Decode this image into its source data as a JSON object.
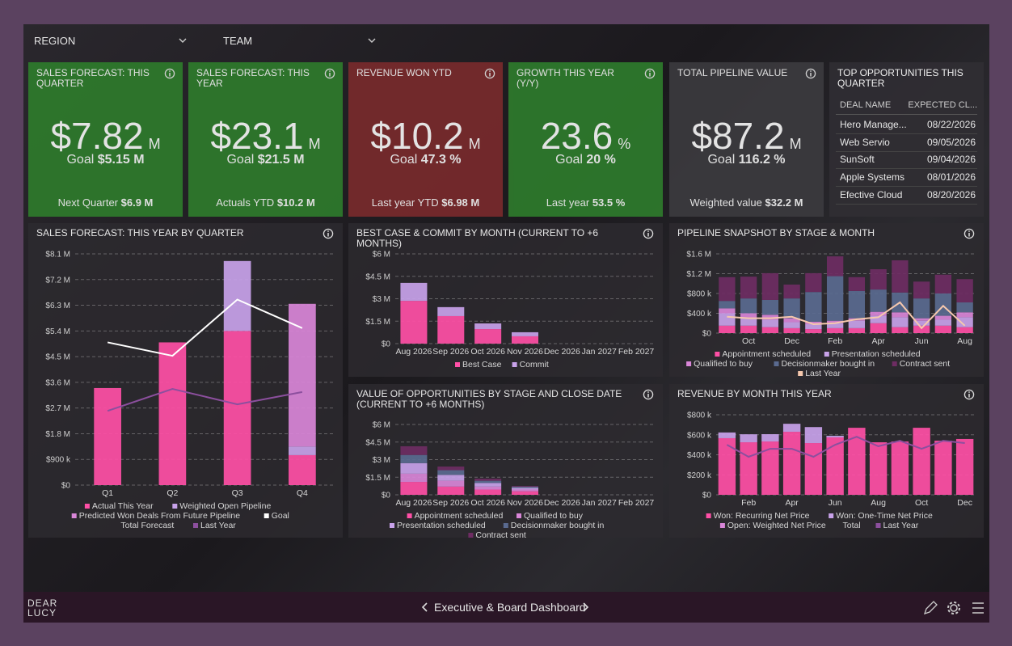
{
  "filters": [
    "REGION",
    "TEAM"
  ],
  "kpis": [
    {
      "title": "SALES FORECAST: THIS QUARTER",
      "value": "$7.82",
      "unit": "M",
      "goal_label": "Goal",
      "goal": "$5.15 M",
      "foot_label": "Next Quarter",
      "foot": "$6.9 M",
      "color": "#2e7a2c"
    },
    {
      "title": "SALES FORECAST: THIS YEAR",
      "value": "$23.1",
      "unit": "M",
      "goal_label": "Goal",
      "goal": "$21.5 M",
      "foot_label": "Actuals YTD",
      "foot": "$10.2 M",
      "color": "#2e7a2c"
    },
    {
      "title": "REVENUE WON YTD",
      "value": "$10.2",
      "unit": "M",
      "goal_label": "Goal",
      "goal": "47.3 %",
      "foot_label": "Last year YTD",
      "foot": "$6.98 M",
      "color": "#782a2c"
    },
    {
      "title": "GROWTH THIS YEAR (Y/Y)",
      "value": "23.6",
      "unit": "%",
      "goal_label": "Goal",
      "goal": "20 %",
      "foot_label": "Last year",
      "foot": "53.5 %",
      "color": "#2e7a2c"
    },
    {
      "title": "TOTAL PIPELINE VALUE",
      "value": "$87.2",
      "unit": "M",
      "goal_label": "Goal",
      "goal": "116.2 %",
      "foot_label": "Weighted value",
      "foot": "$32.2 M",
      "color": "#3b3a3e"
    }
  ],
  "table": {
    "title": "TOP OPPORTUNITIES THIS QUARTER",
    "columns": [
      "DEAL NAME",
      "EXPECTED CL..."
    ],
    "rows": [
      [
        "Hero Manage...",
        "08/22/2026"
      ],
      [
        "Web Servio",
        "09/05/2026"
      ],
      [
        "SunSoft",
        "09/04/2026"
      ],
      [
        "Apple Systems",
        "08/01/2026"
      ],
      [
        "Efective Cloud",
        "08/20/2026"
      ]
    ]
  },
  "chart_data": [
    {
      "type": "bar",
      "stacked": true,
      "title": "SALES FORECAST: THIS YEAR BY QUARTER",
      "categories": [
        "Q1",
        "Q2",
        "Q3",
        "Q4"
      ],
      "series": [
        {
          "name": "Actual This Year",
          "color": "#ff4fa6",
          "values": [
            3400000,
            5000000,
            5400000,
            1050000
          ]
        },
        {
          "name": "Weighted Open Pipeline",
          "color": "#c8a2ea",
          "values": [
            null,
            null,
            2450000,
            300000
          ]
        },
        {
          "name": "Predicted Won Deals From Future Pipeline",
          "color": "#d986d8",
          "values": [
            null,
            null,
            null,
            5000000
          ]
        },
        {
          "name": "Goal",
          "color": "#ffffff",
          "type": "line",
          "values": [
            5000000,
            4530000,
            6500000,
            5500000
          ]
        },
        {
          "name": "Total Forecast",
          "type": "line",
          "values": [
            null,
            null,
            null,
            null
          ]
        },
        {
          "name": "Last Year",
          "color": "#8c4f9e",
          "type": "line",
          "values": [
            2600000,
            3370000,
            2830000,
            3260000
          ]
        }
      ],
      "ylim": [
        0,
        8100000
      ],
      "yticks": [
        {
          "value": 0,
          "label": "$0"
        },
        {
          "value": 900000,
          "label": "$900 k"
        },
        {
          "value": 1800000,
          "label": "$1.8 M"
        },
        {
          "value": 2700000,
          "label": "$2.7 M"
        },
        {
          "value": 3600000,
          "label": "$3.6 M"
        },
        {
          "value": 4500000,
          "label": "$4.5 M"
        },
        {
          "value": 5400000,
          "label": "$5.4 M"
        },
        {
          "value": 6300000,
          "label": "$6.3 M"
        },
        {
          "value": 7200000,
          "label": "$7.2 M"
        },
        {
          "value": 8100000,
          "label": "$8.1 M"
        }
      ],
      "grid": true,
      "legend": "bottom"
    },
    {
      "type": "bar",
      "stacked": true,
      "title": "BEST CASE & COMMIT BY MONTH (CURRENT TO +6 MONTHS)",
      "categories": [
        "Aug 2026",
        "Sep 2026",
        "Oct 2026",
        "Nov 2026",
        "Dec 2026",
        "Jan 2027",
        "Feb 2027"
      ],
      "series": [
        {
          "name": "Best Case",
          "color": "#ff4fa6",
          "values": [
            2860000,
            1840000,
            970000,
            490000,
            0,
            0,
            0
          ]
        },
        {
          "name": "Commit",
          "color": "#c8a2ea",
          "values": [
            1200000,
            600000,
            380000,
            270000,
            0,
            0,
            0
          ]
        }
      ],
      "ylim": [
        0,
        6000000
      ],
      "yticks": [
        {
          "value": 0,
          "label": "$0"
        },
        {
          "value": 1500000,
          "label": "$1.5 M"
        },
        {
          "value": 3000000,
          "label": "$3 M"
        },
        {
          "value": 4500000,
          "label": "$4.5 M"
        },
        {
          "value": 6000000,
          "label": "$6 M"
        }
      ],
      "grid": true,
      "legend": "bottom"
    },
    {
      "type": "bar",
      "stacked": true,
      "title": "PIPELINE SNAPSHOT BY STAGE & MONTH",
      "categories": [
        null,
        "Oct",
        null,
        "Dec",
        null,
        "Feb",
        null,
        "Apr",
        null,
        "Jun",
        null,
        "Aug"
      ],
      "series": [
        {
          "name": "Appointment scheduled",
          "color": "#ff4fa6",
          "values": [
            150000,
            150000,
            120000,
            100000,
            80000,
            100000,
            100000,
            200000,
            120000,
            150000,
            150000,
            120000
          ]
        },
        {
          "name": "Presentation scheduled",
          "color": "#c8a2ea",
          "values": [
            250000,
            150000,
            150000,
            120000,
            100000,
            100000,
            150000,
            150000,
            200000,
            100000,
            120000,
            200000
          ]
        },
        {
          "name": "Qualified to buy",
          "color": "#d986d8",
          "values": [
            100000,
            100000,
            100000,
            80000,
            50000,
            50000,
            50000,
            80000,
            100000,
            50000,
            80000,
            100000
          ]
        },
        {
          "name": "Decisionmaker bought in",
          "color": "#5a6a90",
          "values": [
            150000,
            300000,
            300000,
            400000,
            600000,
            900000,
            550000,
            450000,
            400000,
            400000,
            450000,
            200000
          ]
        },
        {
          "name": "Contract sent",
          "color": "#6e2c63",
          "values": [
            480000,
            440000,
            540000,
            280000,
            380000,
            400000,
            280000,
            410000,
            650000,
            340000,
            380000,
            470000
          ]
        },
        {
          "name": "Last Year",
          "color": "#f6c8ad",
          "type": "line",
          "values": [
            330000,
            300000,
            300000,
            330000,
            180000,
            200000,
            280000,
            320000,
            620000,
            100000,
            550000,
            150000
          ]
        }
      ],
      "ylim": [
        0,
        1600000
      ],
      "yticks": [
        {
          "value": 0,
          "label": "$0"
        },
        {
          "value": 400000,
          "label": "$400 k"
        },
        {
          "value": 800000,
          "label": "$800 k"
        },
        {
          "value": 1200000,
          "label": "$1.2 M"
        },
        {
          "value": 1600000,
          "label": "$1.6 M"
        }
      ],
      "grid": true,
      "legend": "bottom"
    },
    {
      "type": "bar",
      "stacked": true,
      "title": "VALUE OF OPPORTUNITIES BY STAGE AND CLOSE DATE (CURRENT TO +6 MONTHS)",
      "categories": [
        "Aug 2026",
        "Sep 2026",
        "Oct 2026",
        "Nov 2026",
        "Dec 2026",
        "Jan 2027",
        "Feb 2027"
      ],
      "series": [
        {
          "name": "Appointment scheduled",
          "color": "#ff4fa6",
          "values": [
            1100000,
            700000,
            450000,
            300000,
            0,
            0,
            0
          ]
        },
        {
          "name": "Qualified to buy",
          "color": "#d986d8",
          "values": [
            700000,
            500000,
            250000,
            150000,
            0,
            0,
            0
          ]
        },
        {
          "name": "Presentation scheduled",
          "color": "#c8a2ea",
          "values": [
            900000,
            500000,
            300000,
            150000,
            0,
            0,
            0
          ]
        },
        {
          "name": "Decisionmaker bought in",
          "color": "#5a6a90",
          "values": [
            700000,
            400000,
            200000,
            100000,
            0,
            0,
            0
          ]
        },
        {
          "name": "Contract sent",
          "color": "#6e2c63",
          "values": [
            740000,
            310000,
            180000,
            60000,
            0,
            0,
            0
          ]
        }
      ],
      "ylim": [
        0,
        6000000
      ],
      "yticks": [
        {
          "value": 0,
          "label": "$0"
        },
        {
          "value": 1500000,
          "label": "$1.5 M"
        },
        {
          "value": 3000000,
          "label": "$3 M"
        },
        {
          "value": 4500000,
          "label": "$4.5 M"
        },
        {
          "value": 6000000,
          "label": "$6 M"
        }
      ],
      "grid": true,
      "legend": "bottom"
    },
    {
      "type": "bar",
      "stacked": true,
      "title": "REVENUE BY MONTH THIS YEAR",
      "categories": [
        null,
        "Feb",
        null,
        "Apr",
        null,
        "Jun",
        null,
        "Aug",
        null,
        "Oct",
        null,
        "Dec"
      ],
      "series": [
        {
          "name": "Won: Recurring Net Price",
          "color": "#ff4fa6",
          "values": [
            566000,
            525000,
            533000,
            630000,
            517000,
            574000,
            670000,
            525000,
            533000,
            670000,
            541000,
            558000
          ]
        },
        {
          "name": "Won: One-Time Net Price",
          "color": "#c8a2ea",
          "values": [
            57000,
            80000,
            73000,
            80000,
            160000,
            16000,
            0,
            0,
            0,
            0,
            0,
            0
          ]
        },
        {
          "name": "Open: Weighted Net Price",
          "color": "#d986d8",
          "values": [
            null,
            null,
            null,
            null,
            null,
            null,
            null,
            null,
            null,
            null,
            null,
            null
          ]
        },
        {
          "name": "Total",
          "type": "line",
          "values": [
            null,
            null,
            null,
            null,
            null,
            null,
            null,
            null,
            null,
            null,
            null,
            null
          ]
        },
        {
          "name": "Last Year",
          "color": "#8c4f9e",
          "type": "line",
          "values": [
            500000,
            380000,
            460000,
            460000,
            380000,
            500000,
            580000,
            485000,
            540000,
            460000,
            540000,
            517000
          ]
        }
      ],
      "ylim": [
        0,
        800000
      ],
      "yticks": [
        {
          "value": 0,
          "label": "$0"
        },
        {
          "value": 200000,
          "label": "$200 k"
        },
        {
          "value": 400000,
          "label": "$400 k"
        },
        {
          "value": 600000,
          "label": "$600 k"
        },
        {
          "value": 800000,
          "label": "$800 k"
        }
      ],
      "grid": true,
      "legend": "bottom"
    }
  ],
  "footer": {
    "logo": [
      "DEAR",
      "LUCY"
    ],
    "nav": "Executive & Board Dashboard"
  }
}
